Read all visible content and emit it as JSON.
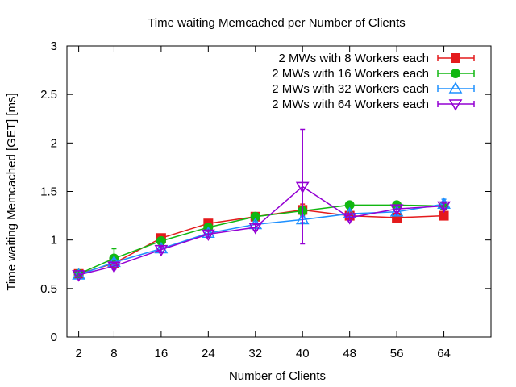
{
  "chart_data": {
    "type": "line",
    "title": "Time waiting Memcached per Number of Clients",
    "xlabel": "Number of Clients",
    "ylabel": "Time waiting Memcached [GET] [ms]",
    "x": [
      2,
      8,
      16,
      24,
      32,
      40,
      48,
      56,
      64
    ],
    "xticks": [
      "2",
      "8",
      "16",
      "24",
      "32",
      "40",
      "48",
      "56",
      "64"
    ],
    "yticks": [
      "0",
      "0.5",
      "1",
      "1.5",
      "2",
      "2.5",
      "3"
    ],
    "xlim": [
      0,
      72
    ],
    "ylim": [
      0,
      3
    ],
    "grid": false,
    "legend_position": "top-right",
    "series": [
      {
        "name": "2 MWs with 8 Workers each",
        "color": "#e41a1c",
        "marker": "square",
        "values": [
          0.65,
          0.76,
          1.02,
          1.17,
          1.24,
          1.31,
          1.25,
          1.23,
          1.25
        ],
        "errors": [
          0.02,
          0.03,
          0.03,
          0.03,
          0.03,
          0.06,
          0.03,
          0.03,
          0.03
        ]
      },
      {
        "name": "2 MWs with 16 Workers each",
        "color": "#11b711",
        "marker": "circle",
        "values": [
          0.65,
          0.81,
          0.99,
          1.13,
          1.24,
          1.3,
          1.36,
          1.36,
          1.35
        ],
        "errors": [
          0.02,
          0.1,
          0.03,
          0.03,
          0.03,
          0.04,
          0.03,
          0.03,
          0.03
        ]
      },
      {
        "name": "2 MWs with 32 Workers each",
        "color": "#1e90ff",
        "marker": "triangle-up",
        "values": [
          0.64,
          0.77,
          0.91,
          1.07,
          1.16,
          1.21,
          1.27,
          1.29,
          1.37
        ],
        "errors": [
          0.02,
          0.03,
          0.03,
          0.03,
          0.03,
          0.03,
          0.03,
          0.03,
          0.05
        ]
      },
      {
        "name": "2 MWs with 64 Workers each",
        "color": "#9400d3",
        "marker": "triangle-down",
        "values": [
          0.64,
          0.73,
          0.9,
          1.06,
          1.13,
          1.55,
          1.23,
          1.32,
          1.35
        ],
        "errors": [
          0.02,
          0.03,
          0.03,
          0.03,
          0.03,
          0.59,
          0.03,
          0.03,
          0.03
        ]
      }
    ]
  }
}
